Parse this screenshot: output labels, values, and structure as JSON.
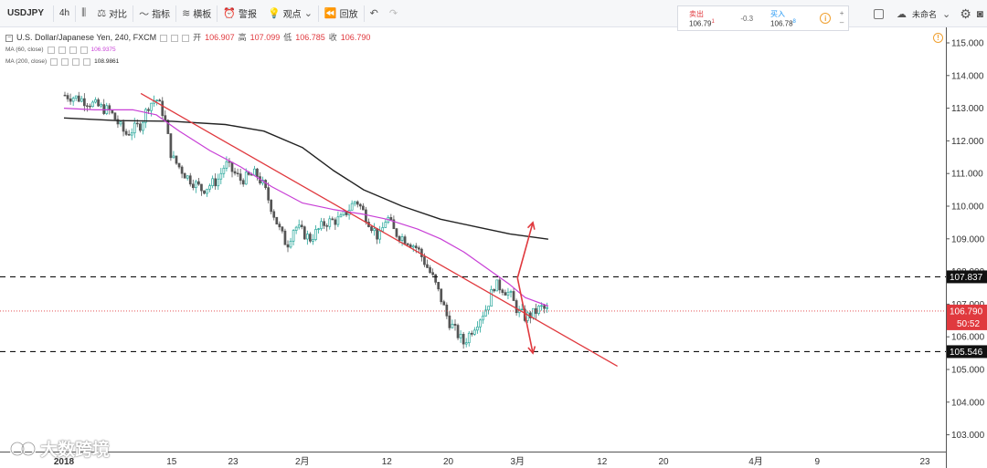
{
  "toolbar": {
    "symbol": "USDJPY",
    "interval": "4h",
    "compare": "对比",
    "indicators": "指标",
    "templates": "横板",
    "alert": "警报",
    "ideas": "观点",
    "replay": "回放",
    "layout_name": "未命名"
  },
  "quote": {
    "sell_label": "卖出",
    "sell_value": "106.79",
    "sell_sup": "1",
    "spread": "-0.3",
    "buy_label": "买入",
    "buy_value": "106.78",
    "buy_sup": "8",
    "plus": "+",
    "minus": "–"
  },
  "legend": {
    "title": "U.S. Dollar/Japanese Yen, 240, FXCM",
    "open_label": "开",
    "open": "106.907",
    "high_label": "高",
    "high": "107.099",
    "low_label": "低",
    "low": "106.785",
    "close_label": "收",
    "close": "106.790",
    "ma60_label": "MA (60, close)",
    "ma60_value": "106.9375",
    "ma200_label": "MA (200, close)",
    "ma200_value": "108.9861"
  },
  "watermark": "大数跨境",
  "colors": {
    "up": "#26a69a",
    "down": "#555555",
    "ma60": "#c83fd6",
    "ma200": "#222222",
    "trendline": "#e0393e",
    "arrow": "#e0393e",
    "price_tag": "#e0393e"
  },
  "chart_data": {
    "type": "candlestick",
    "y_ticks": [
      "115.000",
      "114.000",
      "113.000",
      "112.000",
      "111.000",
      "110.000",
      "109.000",
      "108.000",
      "107.000",
      "106.000",
      "105.000",
      "104.000",
      "103.000"
    ],
    "ylim": [
      102.3,
      115.3
    ],
    "x_ticks": [
      {
        "label": "2018",
        "date": "2018-01-01",
        "bold": true
      },
      {
        "label": "15",
        "date": "2018-01-15"
      },
      {
        "label": "23",
        "date": "2018-01-23"
      },
      {
        "label": "2月",
        "date": "2018-02-01"
      },
      {
        "label": "12",
        "date": "2018-02-12"
      },
      {
        "label": "20",
        "date": "2018-02-20"
      },
      {
        "label": "3月",
        "date": "2018-03-01"
      },
      {
        "label": "12",
        "date": "2018-03-12"
      },
      {
        "label": "20",
        "date": "2018-03-20"
      },
      {
        "label": "4月",
        "date": "2018-04-01"
      },
      {
        "label": "9",
        "date": "2018-04-09"
      },
      {
        "label": "23",
        "date": "2018-04-23"
      }
    ],
    "close_path": [
      [
        "2018-01-01",
        113.4
      ],
      [
        "2018-01-03",
        113.3
      ],
      [
        "2018-01-05",
        113.1
      ],
      [
        "2018-01-07",
        112.9
      ],
      [
        "2018-01-09",
        112.2
      ],
      [
        "2018-01-11",
        112.5
      ],
      [
        "2018-01-12",
        113.1
      ],
      [
        "2018-01-13",
        113.3
      ],
      [
        "2018-01-14",
        112.8
      ],
      [
        "2018-01-15",
        111.5
      ],
      [
        "2018-01-17",
        110.9
      ],
      [
        "2018-01-19",
        110.5
      ],
      [
        "2018-01-21",
        110.8
      ],
      [
        "2018-01-22",
        111.3
      ],
      [
        "2018-01-24",
        110.8
      ],
      [
        "2018-01-26",
        111.0
      ],
      [
        "2018-01-27",
        110.6
      ],
      [
        "2018-01-29",
        109.3
      ],
      [
        "2018-01-30",
        108.8
      ],
      [
        "2018-01-31",
        109.4
      ],
      [
        "2018-02-02",
        109.0
      ],
      [
        "2018-02-04",
        109.5
      ],
      [
        "2018-02-06",
        109.6
      ],
      [
        "2018-02-08",
        110.2
      ],
      [
        "2018-02-09",
        109.8
      ],
      [
        "2018-02-11",
        109.0
      ],
      [
        "2018-02-12",
        109.7
      ],
      [
        "2018-02-13",
        109.2
      ],
      [
        "2018-02-15",
        108.9
      ],
      [
        "2018-02-16",
        108.7
      ],
      [
        "2018-02-18",
        107.8
      ],
      [
        "2018-02-19",
        107.2
      ],
      [
        "2018-02-20",
        106.5
      ],
      [
        "2018-02-22",
        105.8
      ],
      [
        "2018-02-23",
        106.2
      ],
      [
        "2018-02-25",
        106.9
      ],
      [
        "2018-02-26",
        107.6
      ],
      [
        "2018-02-27",
        107.5
      ],
      [
        "2018-02-28",
        107.3
      ],
      [
        "2018-03-01",
        106.8
      ],
      [
        "2018-03-02",
        106.6
      ],
      [
        "2018-03-03",
        106.7
      ],
      [
        "2018-03-04",
        106.9
      ],
      [
        "2018-03-05",
        106.79
      ]
    ],
    "ma60": [
      [
        "2018-01-01",
        113.0
      ],
      [
        "2018-01-05",
        112.95
      ],
      [
        "2018-01-10",
        112.95
      ],
      [
        "2018-01-13",
        112.8
      ],
      [
        "2018-01-16",
        112.3
      ],
      [
        "2018-01-20",
        111.7
      ],
      [
        "2018-01-24",
        111.2
      ],
      [
        "2018-01-28",
        110.6
      ],
      [
        "2018-02-01",
        110.1
      ],
      [
        "2018-02-05",
        109.9
      ],
      [
        "2018-02-09",
        109.75
      ],
      [
        "2018-02-12",
        109.6
      ],
      [
        "2018-02-16",
        109.3
      ],
      [
        "2018-02-19",
        109.0
      ],
      [
        "2018-02-22",
        108.6
      ],
      [
        "2018-02-25",
        108.1
      ],
      [
        "2018-02-28",
        107.6
      ],
      [
        "2018-03-02",
        107.2
      ],
      [
        "2018-03-05",
        106.94
      ]
    ],
    "ma200": [
      [
        "2018-01-01",
        112.7
      ],
      [
        "2018-01-08",
        112.62
      ],
      [
        "2018-01-15",
        112.6
      ],
      [
        "2018-01-22",
        112.5
      ],
      [
        "2018-01-27",
        112.3
      ],
      [
        "2018-02-01",
        111.8
      ],
      [
        "2018-02-05",
        111.1
      ],
      [
        "2018-02-09",
        110.5
      ],
      [
        "2018-02-14",
        110.0
      ],
      [
        "2018-02-19",
        109.6
      ],
      [
        "2018-02-24",
        109.35
      ],
      [
        "2018-02-28",
        109.15
      ],
      [
        "2018-03-05",
        108.99
      ]
    ],
    "trendline": [
      [
        "2018-01-11",
        113.45
      ],
      [
        "2018-03-14",
        105.1
      ]
    ],
    "horizontal_levels": [
      {
        "value": 107.837,
        "label": "107.837",
        "style": "dashed"
      },
      {
        "value": 105.546,
        "label": "105.546",
        "style": "dashed"
      }
    ],
    "current_price": {
      "value": 106.79,
      "label": "106.790",
      "countdown": "50:52"
    },
    "arrows": [
      {
        "from": [
          "2018-03-01",
          107.8
        ],
        "to": [
          "2018-03-03",
          109.5
        ],
        "direction": "up"
      },
      {
        "from": [
          "2018-03-01",
          107.8
        ],
        "to": [
          "2018-03-03",
          105.5
        ],
        "direction": "down"
      }
    ]
  }
}
